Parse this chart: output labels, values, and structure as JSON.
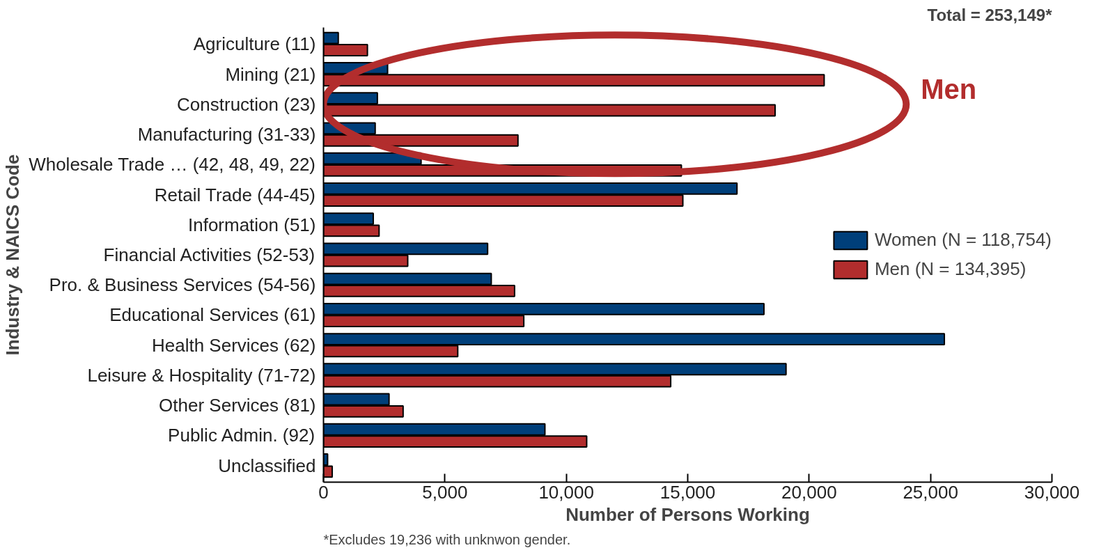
{
  "chart_data": {
    "type": "bar",
    "orientation": "horizontal",
    "categories": [
      "Agriculture (11)",
      "Mining (21)",
      "Construction (23)",
      "Manufacturing (31-33)",
      "Wholesale Trade … (42, 48, 49, 22)",
      "Retail Trade (44-45)",
      "Information (51)",
      "Financial Activities (52-53)",
      "Pro. & Business Services (54-56)",
      "Educational Services (61)",
      "Health Services (62)",
      "Leisure & Hospitality (71-72)",
      "Other Services (81)",
      "Public Admin. (92)",
      "Unclassified"
    ],
    "series": [
      {
        "name": "Women (N = 118,754)",
        "color": "#003f7a",
        "values": [
          610,
          2640,
          2220,
          2130,
          4020,
          17030,
          2050,
          6760,
          6910,
          18140,
          25570,
          19050,
          2700,
          9120,
          170
        ]
      },
      {
        "name": "Men (N = 134,395)",
        "color": "#b22d2d",
        "values": [
          1810,
          20620,
          18600,
          8010,
          14740,
          14800,
          2290,
          3470,
          7870,
          8250,
          5530,
          14300,
          3280,
          10840,
          360
        ]
      }
    ],
    "xlabel": "Number of Persons Working",
    "ylabel": "Industry & NAICS Code",
    "xlim": [
      0,
      30000
    ],
    "xticks": [
      {
        "value": 0,
        "label": "0"
      },
      {
        "value": 5000,
        "label": "5,000"
      },
      {
        "value": 10000,
        "label": "10,000"
      },
      {
        "value": 15000,
        "label": "15,000"
      },
      {
        "value": 20000,
        "label": "20,000"
      },
      {
        "value": 25000,
        "label": "25,000"
      },
      {
        "value": 30000,
        "label": "30,000"
      }
    ],
    "annotations": [
      "Total = 253,149*",
      "Men",
      "*Excludes 19,236 with unknwon gender."
    ],
    "legend": "right",
    "grid": false
  }
}
